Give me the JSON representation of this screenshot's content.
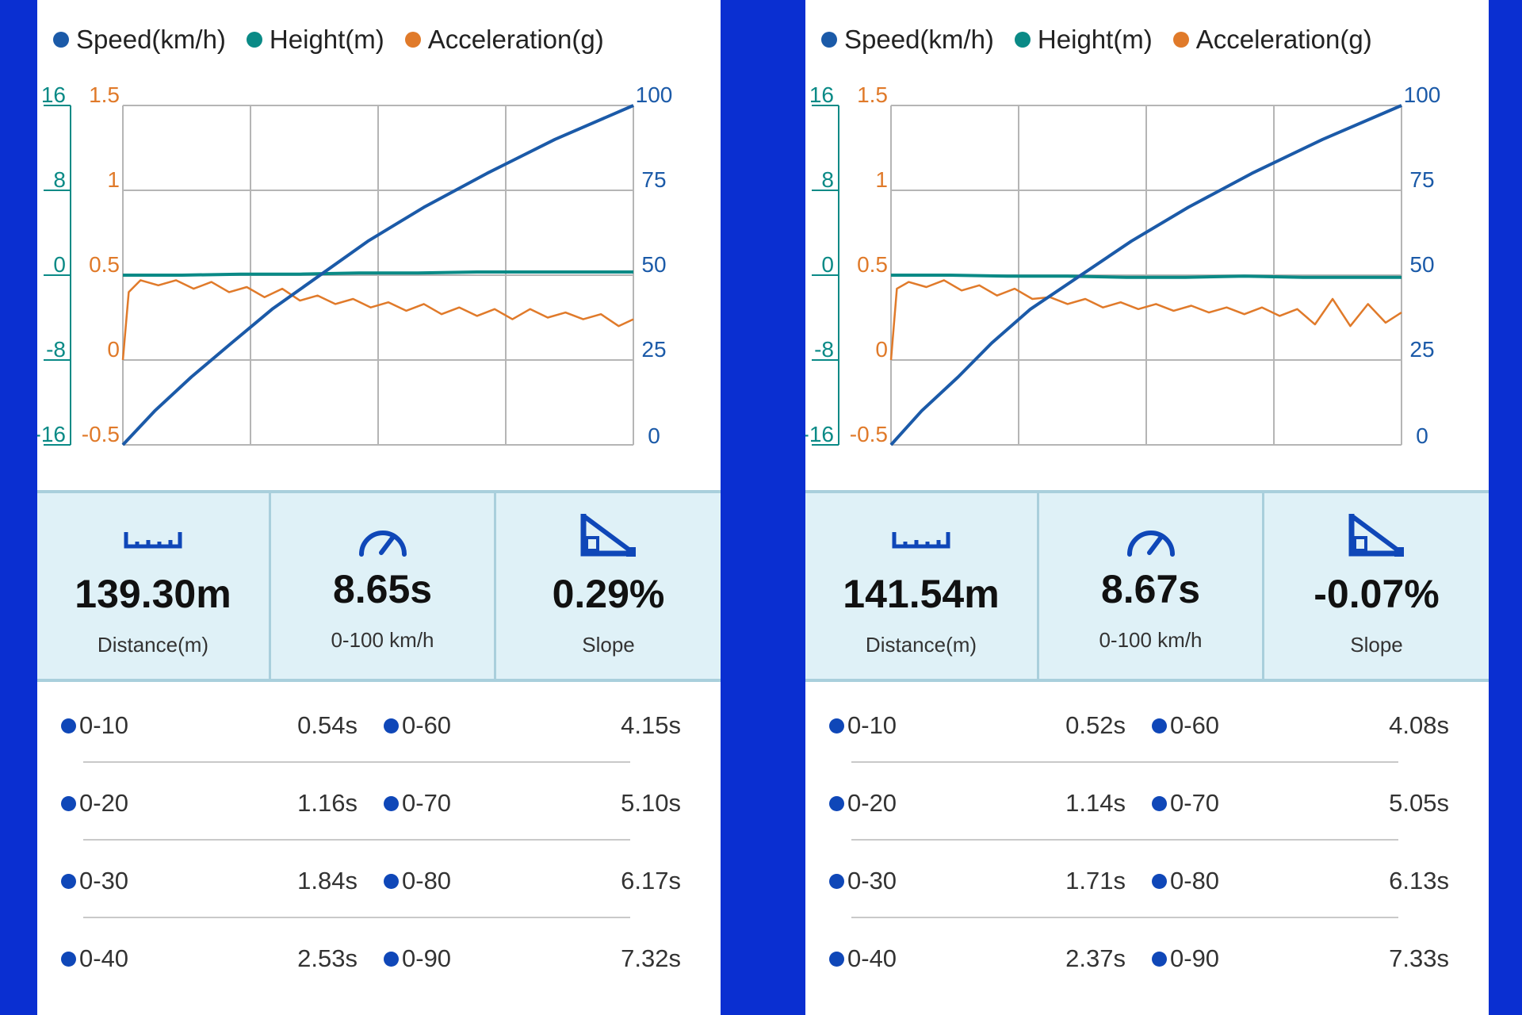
{
  "colors": {
    "speed": "#1b5aa8",
    "height": "#0a8a86",
    "acceleration": "#e07a2a",
    "background": "#0a2fd1",
    "stats_bg": "#dff1f7"
  },
  "icons": {
    "distance": "ruler-icon",
    "time": "speedometer-icon",
    "slope": "slope-icon"
  },
  "legend": [
    {
      "label": "Speed(km/h)",
      "color": "#1b5aa8"
    },
    {
      "label": "Height(m)",
      "color": "#0a8a86"
    },
    {
      "label": "Acceleration(g)",
      "color": "#e07a2a"
    }
  ],
  "panels": [
    {
      "stats": {
        "distance": {
          "value": "139.30m",
          "label": "Distance(m)"
        },
        "time": {
          "value": "8.65s",
          "label": "0-100 km/h"
        },
        "slope": {
          "value": "0.29%",
          "label": "Slope"
        }
      },
      "splits": [
        {
          "a": "0-10",
          "a_time": "0.54s",
          "b": "0-60",
          "b_time": "4.15s"
        },
        {
          "a": "0-20",
          "a_time": "1.16s",
          "b": "0-70",
          "b_time": "5.10s"
        },
        {
          "a": "0-30",
          "a_time": "1.84s",
          "b": "0-80",
          "b_time": "6.17s"
        },
        {
          "a": "0-40",
          "a_time": "2.53s",
          "b": "0-90",
          "b_time": "7.32s"
        }
      ]
    },
    {
      "stats": {
        "distance": {
          "value": "141.54m",
          "label": "Distance(m)"
        },
        "time": {
          "value": "8.67s",
          "label": "0-100 km/h"
        },
        "slope": {
          "value": "-0.07%",
          "label": "Slope"
        }
      },
      "splits": [
        {
          "a": "0-10",
          "a_time": "0.52s",
          "b": "0-60",
          "b_time": "4.08s"
        },
        {
          "a": "0-20",
          "a_time": "1.14s",
          "b": "0-70",
          "b_time": "5.05s"
        },
        {
          "a": "0-30",
          "a_time": "1.71s",
          "b": "0-80",
          "b_time": "6.13s"
        },
        {
          "a": "0-40",
          "a_time": "2.37s",
          "b": "0-90",
          "b_time": "7.33s"
        }
      ]
    }
  ],
  "chart_data": [
    {
      "type": "line",
      "legend_position": "top",
      "grid": true,
      "axes": {
        "height_left_outer": {
          "ticks": [
            "16",
            "8",
            "0",
            "-8",
            "-16"
          ],
          "range": [
            -16,
            16
          ]
        },
        "acceleration_left_inner": {
          "ticks": [
            "1.5",
            "1",
            "0.5",
            "0",
            "-0.5"
          ],
          "range": [
            -0.5,
            1.5
          ]
        },
        "speed_right": {
          "ticks": [
            "100",
            "75",
            "50",
            "25",
            "0"
          ],
          "range": [
            0,
            100
          ]
        }
      },
      "x_range": [
        0,
        8.65
      ],
      "series": [
        {
          "name": "Speed(km/h)",
          "axis": "speed_right",
          "x": [
            0,
            0.54,
            1.16,
            1.84,
            2.53,
            4.15,
            5.1,
            6.17,
            7.32,
            8.65
          ],
          "y": [
            0,
            10,
            20,
            30,
            40,
            60,
            70,
            80,
            90,
            100
          ]
        },
        {
          "name": "Height(m)",
          "axis": "height_left_outer",
          "x": [
            0,
            1,
            2,
            3,
            4,
            5,
            6,
            7,
            8,
            8.65
          ],
          "y": [
            0,
            0,
            0.1,
            0.1,
            0.2,
            0.2,
            0.3,
            0.3,
            0.3,
            0.3
          ]
        },
        {
          "name": "Acceleration(g)",
          "axis": "acceleration_left_inner",
          "x": [
            0,
            0.1,
            0.3,
            0.6,
            0.9,
            1.2,
            1.5,
            1.8,
            2.1,
            2.4,
            2.7,
            3.0,
            3.3,
            3.6,
            3.9,
            4.2,
            4.5,
            4.8,
            5.1,
            5.4,
            5.7,
            6.0,
            6.3,
            6.6,
            6.9,
            7.2,
            7.5,
            7.8,
            8.1,
            8.4,
            8.65
          ],
          "y": [
            0,
            0.4,
            0.47,
            0.44,
            0.47,
            0.42,
            0.46,
            0.4,
            0.43,
            0.37,
            0.42,
            0.35,
            0.38,
            0.33,
            0.36,
            0.31,
            0.34,
            0.29,
            0.33,
            0.27,
            0.31,
            0.26,
            0.3,
            0.24,
            0.3,
            0.25,
            0.28,
            0.24,
            0.27,
            0.2,
            0.24
          ]
        }
      ]
    },
    {
      "type": "line",
      "legend_position": "top",
      "grid": true,
      "axes": {
        "height_left_outer": {
          "ticks": [
            "16",
            "8",
            "0",
            "-8",
            "-16"
          ],
          "range": [
            -16,
            16
          ]
        },
        "acceleration_left_inner": {
          "ticks": [
            "1.5",
            "1",
            "0.5",
            "0",
            "-0.5"
          ],
          "range": [
            -0.5,
            1.5
          ]
        },
        "speed_right": {
          "ticks": [
            "100",
            "75",
            "50",
            "25",
            "0"
          ],
          "range": [
            0,
            100
          ]
        }
      },
      "x_range": [
        0,
        8.67
      ],
      "series": [
        {
          "name": "Speed(km/h)",
          "axis": "speed_right",
          "x": [
            0,
            0.52,
            1.14,
            1.71,
            2.37,
            4.08,
            5.05,
            6.13,
            7.33,
            8.67
          ],
          "y": [
            0,
            10,
            20,
            30,
            40,
            60,
            70,
            80,
            90,
            100
          ]
        },
        {
          "name": "Height(m)",
          "axis": "height_left_outer",
          "x": [
            0,
            1,
            2,
            3,
            4,
            5,
            6,
            7,
            8,
            8.67
          ],
          "y": [
            0,
            0,
            -0.1,
            -0.1,
            -0.2,
            -0.2,
            -0.1,
            -0.2,
            -0.2,
            -0.2
          ]
        },
        {
          "name": "Acceleration(g)",
          "axis": "acceleration_left_inner",
          "x": [
            0,
            0.1,
            0.3,
            0.6,
            0.9,
            1.2,
            1.5,
            1.8,
            2.1,
            2.4,
            2.7,
            3.0,
            3.3,
            3.6,
            3.9,
            4.2,
            4.5,
            4.8,
            5.1,
            5.4,
            5.7,
            6.0,
            6.3,
            6.6,
            6.9,
            7.2,
            7.5,
            7.8,
            8.1,
            8.4,
            8.67
          ],
          "y": [
            0,
            0.42,
            0.46,
            0.43,
            0.47,
            0.41,
            0.44,
            0.38,
            0.42,
            0.36,
            0.37,
            0.33,
            0.36,
            0.31,
            0.34,
            0.3,
            0.33,
            0.29,
            0.32,
            0.28,
            0.31,
            0.27,
            0.31,
            0.26,
            0.3,
            0.21,
            0.36,
            0.2,
            0.33,
            0.22,
            0.28
          ]
        }
      ]
    }
  ]
}
